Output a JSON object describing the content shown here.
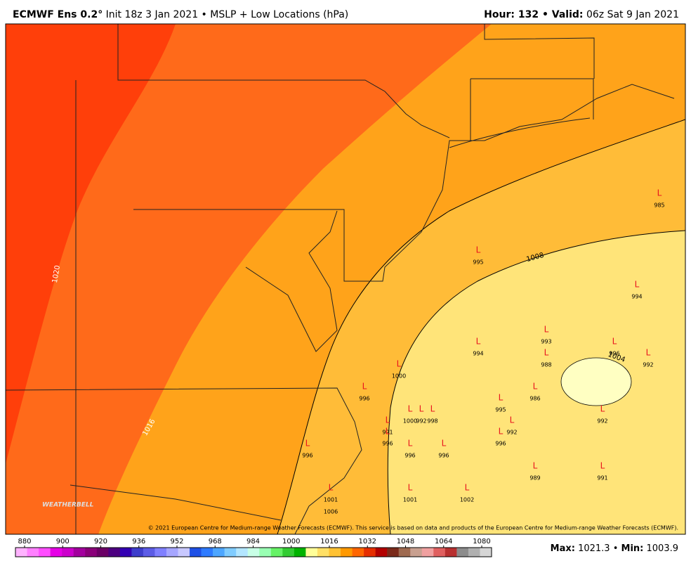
{
  "header": {
    "left": [
      "ECMWF Ens 0.2°",
      " Init 18z 3 Jan 2021 • MSLP + Low Locations (hPa)"
    ],
    "right": [
      "Hour:",
      " 132 • ",
      "Valid:",
      " 06z Sat 9 Jan 2021"
    ]
  },
  "contour_labels": [
    "1020",
    "1016",
    "1008",
    "1004"
  ],
  "lows": {
    "marker": "L",
    "values": [
      985,
      995,
      994,
      993,
      988,
      994,
      996,
      992,
      1000,
      996,
      986,
      995,
      1000,
      992,
      998,
      992,
      992,
      991,
      996,
      996,
      996,
      996,
      996,
      989,
      991,
      1001,
      1006,
      1001,
      1002
    ]
  },
  "logo": "WEATHERBELL",
  "copyright": "© 2021 European Centre for Medium-range Weather Forecasts (ECMWF). This service is based on data and products of the European Centre for Medium-range Weather Forecasts (ECMWF).",
  "colorbar": {
    "ticks": [
      880,
      900,
      920,
      936,
      952,
      968,
      984,
      1000,
      1016,
      1032,
      1048,
      1064,
      1080
    ],
    "colors": [
      "#ffb3ff",
      "#ff80ff",
      "#ff4dff",
      "#e600e6",
      "#cc00cc",
      "#a3009e",
      "#8a007a",
      "#6b0066",
      "#4d0080",
      "#3300b3",
      "#3d3dcc",
      "#5c5ce6",
      "#8080ff",
      "#a6a6ff",
      "#c8c8ff",
      "#1e50e6",
      "#2e7bff",
      "#4da6ff",
      "#80ccff",
      "#b3e6ff",
      "#c8ffe6",
      "#99ffb3",
      "#66f266",
      "#33cc33",
      "#00b300",
      "#ffff99",
      "#ffe066",
      "#ffc233",
      "#ff9900",
      "#ff6600",
      "#e62e00",
      "#b30000",
      "#7a2a1a",
      "#9e6a50",
      "#c8a090",
      "#f0a0a0",
      "#e06060",
      "#b83030",
      "#8c8c8c",
      "#b0b0b0",
      "#d6d6d6"
    ]
  },
  "footer": [
    "Max:",
    " 1021.3 • ",
    "Min:",
    " 1003.9"
  ]
}
